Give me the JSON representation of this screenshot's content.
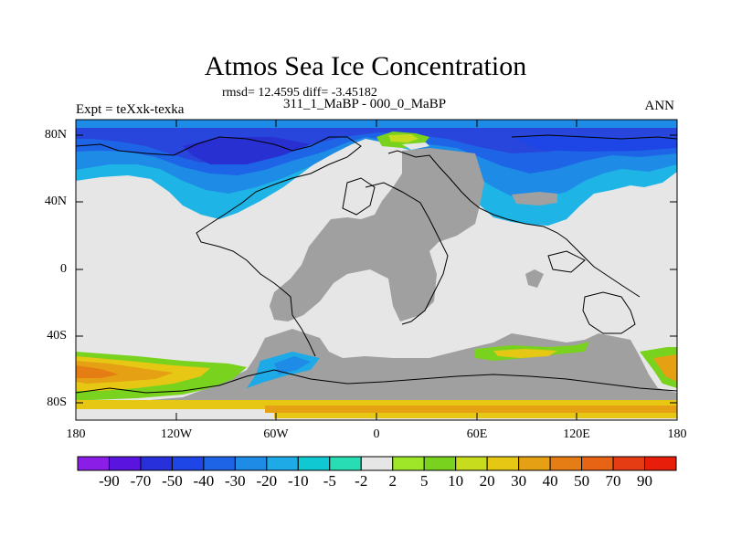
{
  "plot": {
    "title": "Atmos Sea Ice Concentration",
    "stats": "rmsd= 12.4595 diff= -3.45182",
    "comparison": "311_1_MaBP - 000_0_MaBP",
    "experiment": "Expt = teXxk-texka",
    "period": "ANN"
  },
  "axes": {
    "y_ticks": [
      "80N",
      "40N",
      "0",
      "40S",
      "80S"
    ],
    "x_ticks": [
      "180",
      "120W",
      "60W",
      "0",
      "60E",
      "120E",
      "180"
    ]
  },
  "colorbar": {
    "labels": [
      "-90",
      "-70",
      "-50",
      "-40",
      "-30",
      "-20",
      "-10",
      "-5",
      "-2",
      "2",
      "5",
      "10",
      "20",
      "30",
      "40",
      "50",
      "70",
      "90"
    ],
    "colors": [
      "#8a1ee6",
      "#5a14e0",
      "#2830dc",
      "#1e46e6",
      "#1e64e6",
      "#1e8ce6",
      "#1eaae6",
      "#10c8d2",
      "#28dcb4",
      "#e6e6e6",
      "#a0e628",
      "#78d21e",
      "#c8dc1e",
      "#e6c814",
      "#e6a014",
      "#e67d14",
      "#e66414",
      "#e63c14",
      "#e61e0a"
    ]
  },
  "colors": {
    "land": "#a0a0a0",
    "no_change": "#e6e6e6"
  }
}
